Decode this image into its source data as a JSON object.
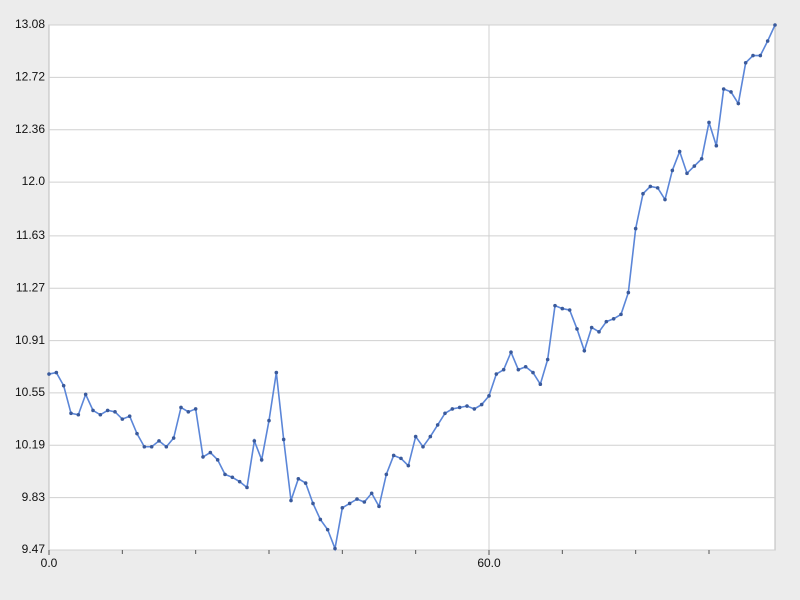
{
  "chart_data": {
    "type": "line",
    "x": [
      0,
      1,
      2,
      3,
      4,
      5,
      6,
      7,
      8,
      9,
      10,
      11,
      12,
      13,
      14,
      15,
      16,
      17,
      18,
      19,
      20,
      21,
      22,
      23,
      24,
      25,
      26,
      27,
      28,
      29,
      30,
      31,
      32,
      33,
      34,
      35,
      36,
      37,
      38,
      39,
      40,
      41,
      42,
      43,
      44,
      45,
      46,
      47,
      48,
      49,
      50,
      51,
      52,
      53,
      54,
      55,
      56,
      57,
      58,
      59,
      60,
      61,
      62,
      63,
      64,
      65,
      66,
      67,
      68,
      69,
      70,
      71,
      72,
      73,
      74,
      75,
      76,
      77,
      78,
      79,
      80,
      81,
      82,
      83,
      84,
      85,
      86,
      87,
      88,
      89,
      90,
      91,
      92,
      93,
      94,
      95,
      96,
      97,
      98,
      99
    ],
    "series": [
      {
        "color": "#5b86d8",
        "marker_color": "#3a5a9c",
        "values": [
          10.68,
          10.69,
          10.6,
          10.41,
          10.4,
          10.54,
          10.43,
          10.4,
          10.43,
          10.42,
          10.37,
          10.39,
          10.27,
          10.18,
          10.18,
          10.22,
          10.18,
          10.24,
          10.45,
          10.42,
          10.44,
          10.11,
          10.14,
          10.09,
          9.99,
          9.97,
          9.94,
          9.9,
          10.22,
          10.09,
          10.36,
          10.69,
          10.23,
          9.81,
          9.96,
          9.93,
          9.79,
          9.68,
          9.61,
          9.48,
          9.76,
          9.79,
          9.82,
          9.8,
          9.86,
          9.77,
          9.99,
          10.12,
          10.1,
          10.05,
          10.25,
          10.18,
          10.25,
          10.33,
          10.41,
          10.44,
          10.45,
          10.46,
          10.44,
          10.47,
          10.53,
          10.68,
          10.71,
          10.83,
          10.71,
          10.73,
          10.69,
          10.61,
          10.78,
          11.15,
          11.13,
          11.12,
          10.99,
          10.84,
          11.0,
          10.97,
          11.04,
          11.06,
          11.09,
          11.24,
          11.68,
          11.92,
          11.97,
          11.96,
          11.88,
          12.08,
          12.21,
          12.06,
          12.11,
          12.16,
          12.41,
          12.25,
          12.64,
          12.62,
          12.54,
          12.82,
          12.87,
          12.87,
          12.97,
          13.08
        ]
      }
    ],
    "xlim": [
      0,
      99
    ],
    "xticks": [
      {
        "value": 0,
        "label": "0.0"
      },
      {
        "value": 60,
        "label": "60.0"
      }
    ],
    "x_minor_ticks": [
      10,
      20,
      30,
      40,
      50,
      70,
      80,
      90
    ],
    "ylim": [
      9.47,
      13.08
    ],
    "yticks": [
      9.47,
      9.83,
      10.19,
      10.55,
      10.91,
      11.27,
      11.63,
      {
        "value": 12,
        "label": "12.0"
      },
      12.36,
      12.72,
      13.08
    ],
    "grid": true
  }
}
